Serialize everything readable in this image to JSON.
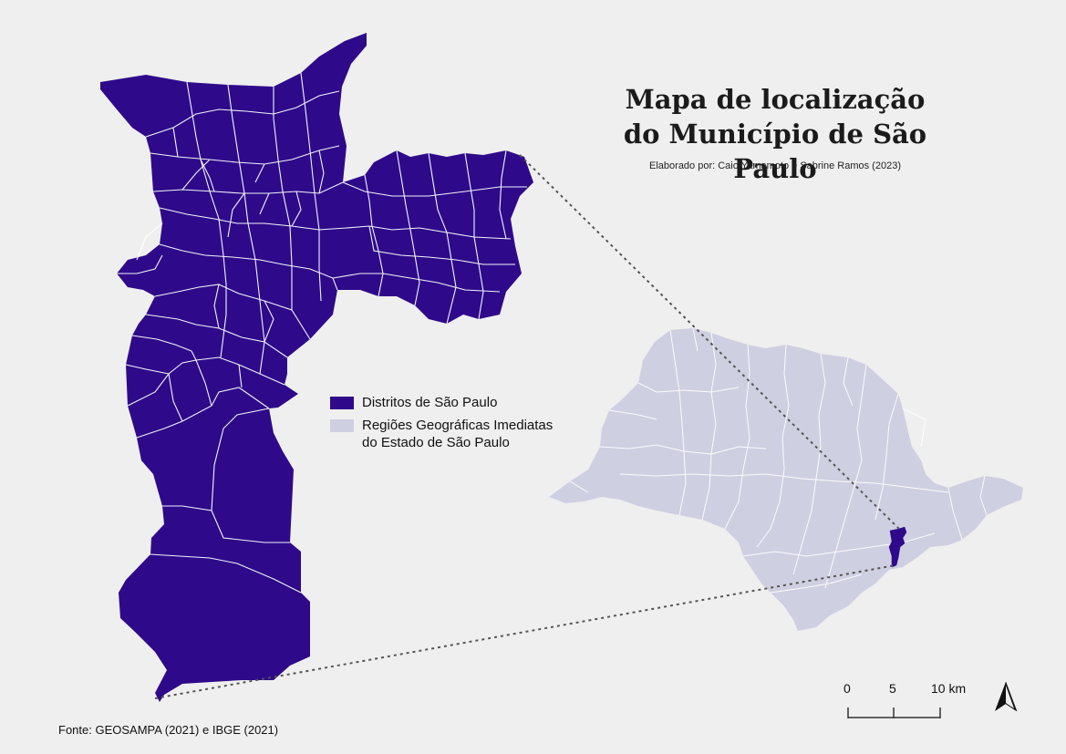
{
  "title_line1": "Mapa de localização",
  "title_line2": "do Município de São Paulo",
  "credit": "Elaborado por: Caio Yamamoto e Sabrine Ramos (2023)",
  "legend": [
    {
      "label": "Distritos de São Paulo",
      "color": "#2e0a8a"
    },
    {
      "label": "Regiões Geográficas Imediatas\n do Estado de São Paulo",
      "color": "#cfcfe2"
    }
  ],
  "scale_bar": {
    "labels": [
      "0",
      "5",
      "10 km"
    ]
  },
  "source": "Fonte: GEOSAMPA (2021) e IBGE (2021)",
  "colors": {
    "background": "#efefef",
    "municipality": "#2e0a8a",
    "state": "#cfcfe2",
    "borders": "#ffffff",
    "connector": "#555555"
  },
  "icons": [
    "north-arrow-icon"
  ]
}
